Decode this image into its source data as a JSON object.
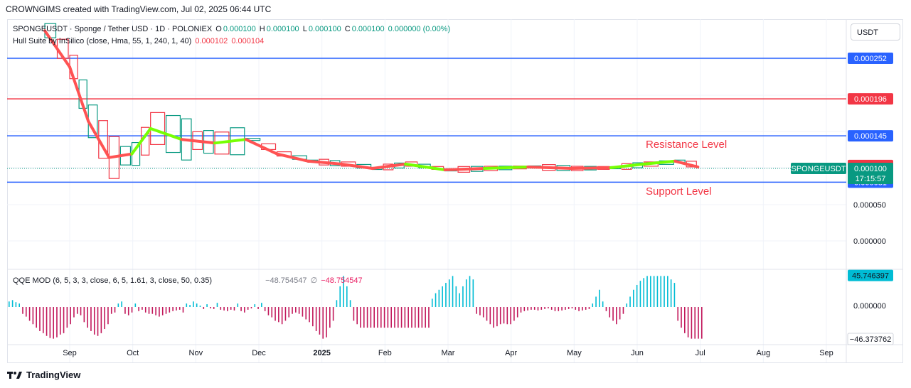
{
  "header": {
    "credit": "CROWNGIMS created with TradingView.com, Jul 02, 2025 06:44 UTC"
  },
  "legend": {
    "symbol": "SPONGEUSDT · Sponge / Tether USD · 1D · POLONIEX",
    "o_label": "O",
    "o_value": "0.000100",
    "h_label": "H",
    "h_value": "0.000100",
    "l_label": "L",
    "l_value": "0.000100",
    "c_label": "C",
    "c_value": "0.000100",
    "change": "0.000000 (0.00%)",
    "indicator": "Hull Suite by InSilico (close, Hma, 55, 1, 240, 1, 40)",
    "ind_v1": "0.000102",
    "ind_v2": "0.000104"
  },
  "qqe": {
    "label": "QQE MOD (6, 5, 3, 3, close, 6, 5, 1.61, 3, close, 50, 0.35)",
    "v1": "−48.754547",
    "v2": "−48.754547",
    "sym": "∅"
  },
  "currency": "USDT",
  "footer": {
    "brand": "TradingView",
    "icon": "tradingview-logo-icon"
  },
  "annotations": {
    "resistance": "Resistance Level",
    "support": "Support Level"
  },
  "colors": {
    "blue_line": "#2962ff",
    "red_line": "#f23645",
    "up": "#089981",
    "down": "#f23645",
    "hull_up": "#76ff03",
    "hull_down": "#ff5252",
    "qqe_up": "#00bcd4",
    "qqe_down": "#c2185b"
  },
  "chart_data": [
    {
      "type": "line",
      "title": "SPONGEUSDT · Sponge / Tether USD · 1D · POLONIEX",
      "x_ticks": [
        "Sep",
        "Oct",
        "Nov",
        "Dec",
        "2025",
        "Feb",
        "Mar",
        "Apr",
        "May",
        "Jun",
        "Jul",
        "Aug",
        "Sep"
      ],
      "y_ticks": [
        "0.000050",
        "0.000000"
      ],
      "horizontal_lines": [
        {
          "value": 0.000252,
          "label": "0.000252",
          "color": "#2962ff"
        },
        {
          "value": 0.000196,
          "label": "0.000196",
          "color": "#f23645"
        },
        {
          "value": 0.000145,
          "label": "0.000145",
          "color": "#2962ff"
        },
        {
          "value": 8.1e-05,
          "label": "0.000081",
          "color": "#2962ff"
        }
      ],
      "price_labels": [
        {
          "value": 0.000104,
          "label": "0.000104",
          "color": "#f23645"
        },
        {
          "value": 0.000102,
          "label": "0.000102",
          "color": "#f23645"
        }
      ],
      "last_price": {
        "symbol": "SPONGEUSDT",
        "value": "0.000100",
        "countdown": "17:15:57"
      },
      "hull_series": {
        "name": "Hull Suite",
        "x": [
          "2024-08-20",
          "2024-09-01",
          "2024-09-10",
          "2024-09-20",
          "2024-10-01",
          "2024-10-10",
          "2024-10-25",
          "2024-11-10",
          "2024-11-25",
          "2024-12-10",
          "2024-12-25",
          "2025-01-10",
          "2025-01-25",
          "2025-02-10",
          "2025-03-01",
          "2025-03-20",
          "2025-04-10",
          "2025-05-01",
          "2025-05-20",
          "2025-06-05",
          "2025-06-20",
          "2025-07-01"
        ],
        "values": [
          0.00029,
          0.00024,
          0.000165,
          0.000115,
          0.00012,
          0.000155,
          0.00014,
          0.000135,
          0.00014,
          0.00012,
          0.00011,
          0.000106,
          0.0001,
          0.000106,
          9.8e-05,
          0.0001,
          0.000102,
          0.0001,
          0.000101,
          0.000106,
          0.00011,
          0.000102
        ],
        "trend": [
          "down",
          "down",
          "down",
          "down",
          "up",
          "up",
          "down",
          "up",
          "down",
          "down",
          "down",
          "down",
          "down",
          "up",
          "down",
          "up",
          "down",
          "down",
          "up",
          "up",
          "down",
          "down"
        ]
      }
    },
    {
      "type": "bar",
      "title": "QQE MOD (6, 5, 3, 3, close, 6, 5, 1.61, 3, close, 50, 0.35)",
      "y_ticks": [
        "0.000000"
      ],
      "price_labels": [
        {
          "value": 45.746397,
          "label": "45.746397",
          "color": "#00bcd4"
        },
        {
          "value": -46.373762,
          "label": "−46.373762",
          "color": "#131722"
        }
      ],
      "values": [
        8,
        10,
        7,
        5,
        -10,
        -14,
        -20,
        -25,
        -30,
        -35,
        -38,
        -42,
        -45,
        -46,
        -44,
        -40,
        -38,
        -30,
        -25,
        -15,
        -10,
        -12,
        -22,
        -30,
        -35,
        -40,
        -42,
        -38,
        -32,
        -25,
        -10,
        -8,
        5,
        8,
        -10,
        -12,
        -8,
        5,
        -6,
        -4,
        -8,
        -10,
        -10,
        -12,
        -14,
        -12,
        -10,
        -8,
        -6,
        -5,
        -4,
        -8,
        5,
        3,
        8,
        5,
        2,
        -3,
        4,
        -2,
        -3,
        6,
        -4,
        -5,
        -6,
        -4,
        -5,
        5,
        -6,
        -8,
        -4,
        -2,
        4,
        -3,
        6,
        -6,
        -12,
        -15,
        -20,
        -22,
        -25,
        -20,
        -15,
        -10,
        -8,
        -10,
        -14,
        -18,
        -22,
        -28,
        -35,
        -40,
        -46,
        -44,
        -30,
        -20,
        10,
        30,
        45,
        30,
        10,
        -20,
        -25,
        -30,
        -30,
        -30,
        -30,
        -30,
        -30,
        -30,
        -30,
        -30,
        -30,
        -30,
        -30,
        -30,
        -30,
        -30,
        -30,
        -30,
        -30,
        -30,
        -30,
        -30,
        12,
        20,
        25,
        30,
        35,
        40,
        45,
        30,
        20,
        30,
        40,
        45,
        40,
        -10,
        -12,
        -15,
        -20,
        -25,
        -30,
        -28,
        -25,
        -24,
        -25,
        -25,
        -20,
        -15,
        -8,
        -6,
        -5,
        -4,
        -4,
        -5,
        -4,
        -3,
        -2,
        -4,
        -6,
        -6,
        -5,
        -4,
        -3,
        -2,
        -4,
        -6,
        -5,
        -4,
        -3,
        5,
        15,
        25,
        8,
        -6,
        -15,
        -20,
        -25,
        -18,
        -10,
        5,
        15,
        25,
        32,
        38,
        42,
        45,
        45,
        45,
        45,
        45,
        45,
        45,
        40,
        35,
        -20,
        -30,
        -38,
        -44,
        -46,
        -46,
        -46,
        -46
      ]
    }
  ]
}
